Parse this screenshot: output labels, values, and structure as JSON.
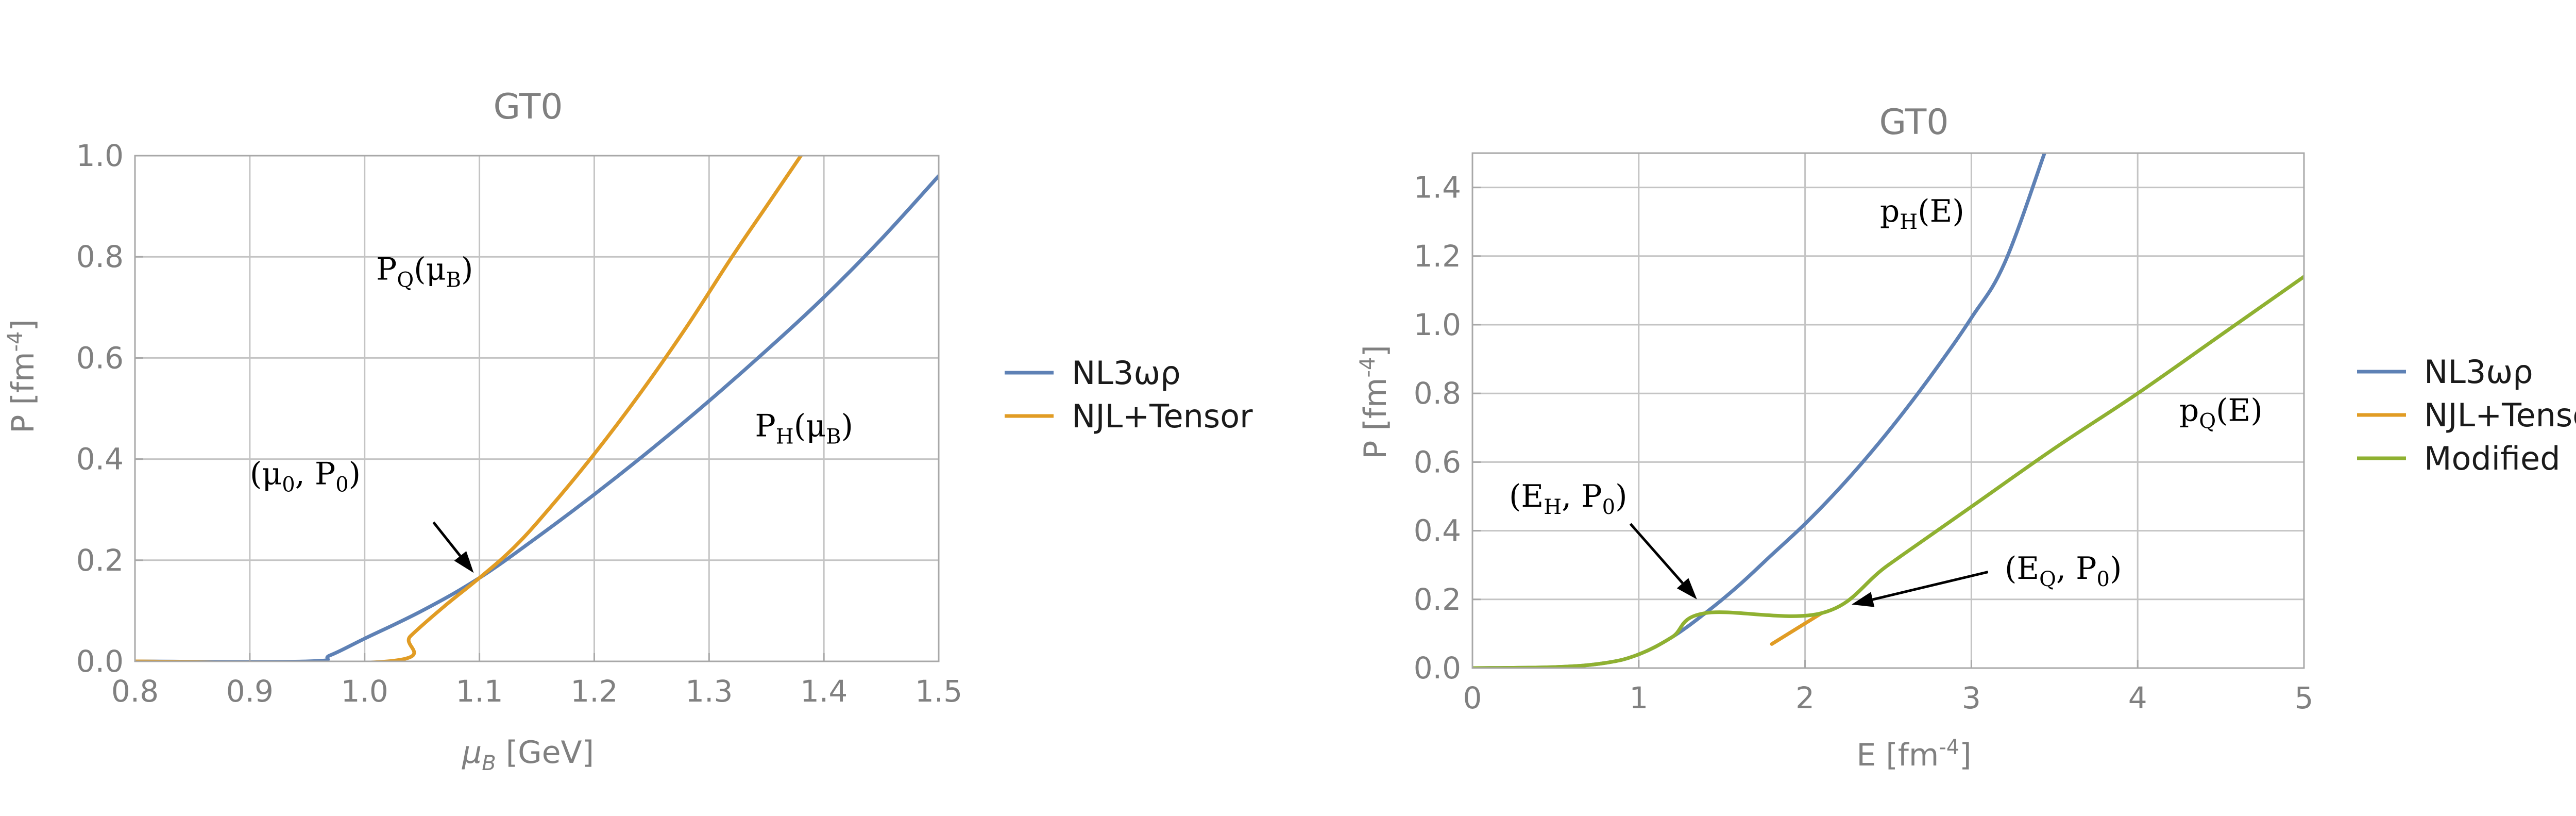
{
  "chart_data": [
    {
      "id": "left",
      "type": "line",
      "title": "GT0",
      "xlabel": "μ_B [GeV]",
      "ylabel": "P [fm^-4]",
      "xlim": [
        0.8,
        1.5
      ],
      "ylim": [
        0,
        1.0
      ],
      "xticks": [
        0.8,
        0.9,
        1.0,
        1.1,
        1.2,
        1.3,
        1.4,
        1.5
      ],
      "xtick_labels": [
        "0.8",
        "0.9",
        "1.0",
        "1.1",
        "1.2",
        "1.3",
        "1.4",
        "1.5"
      ],
      "yticks": [
        0,
        0.2,
        0.4,
        0.6,
        0.8,
        1.0
      ],
      "ytick_labels": [
        "0.0",
        "0.2",
        "0.4",
        "0.6",
        "0.8",
        "1.0"
      ],
      "grid": true,
      "legend_placement": "right",
      "series": [
        {
          "name": "NL3ωρ",
          "color": "#5E81B5",
          "x": [
            0.8,
            0.95,
            0.97,
            1.0,
            1.05,
            1.1,
            1.15,
            1.2,
            1.25,
            1.3,
            1.35,
            1.4,
            1.45,
            1.5
          ],
          "y": [
            0.0,
            0.0,
            0.012,
            0.045,
            0.1,
            0.165,
            0.245,
            0.33,
            0.42,
            0.515,
            0.615,
            0.72,
            0.835,
            0.96
          ]
        },
        {
          "name": "NJL+Tensor",
          "color": "#E19C24",
          "x": [
            0.8,
            1.02,
            1.04,
            1.07,
            1.1,
            1.13,
            1.16,
            1.2,
            1.24,
            1.28,
            1.32,
            1.35,
            1.38
          ],
          "y": [
            0.0,
            0.0,
            0.05,
            0.11,
            0.165,
            0.225,
            0.3,
            0.41,
            0.53,
            0.66,
            0.8,
            0.9,
            1.0
          ]
        }
      ],
      "annotations": [
        {
          "base": "P",
          "sub": "Q",
          "mid": "(μ",
          "midsub": "B",
          "end": ")",
          "x": 1.01,
          "y": 0.755
        },
        {
          "base": "P",
          "sub": "H",
          "mid": "(μ",
          "midsub": "B",
          "end": ")",
          "x": 1.34,
          "y": 0.445
        },
        {
          "base": "(μ",
          "sub": "0",
          "mid": ", P",
          "midsub": "0",
          "end": ")",
          "x": 0.9,
          "y": 0.35
        }
      ],
      "arrows": [
        {
          "from": [
            1.06,
            0.275
          ],
          "to": [
            1.095,
            0.175
          ]
        }
      ]
    },
    {
      "id": "right",
      "type": "line",
      "title": "GT0",
      "xlabel": "E [fm^-4]",
      "ylabel": "P [fm^-4]",
      "xlim": [
        0,
        5
      ],
      "ylim": [
        0,
        1.5
      ],
      "xticks": [
        0,
        1,
        2,
        3,
        4,
        5
      ],
      "xtick_labels": [
        "0",
        "1",
        "2",
        "3",
        "4",
        "5"
      ],
      "yticks": [
        0,
        0.2,
        0.4,
        0.6,
        0.8,
        1.0,
        1.2,
        1.4
      ],
      "ytick_labels": [
        "0.0",
        "0.2",
        "0.4",
        "0.6",
        "0.8",
        "1.0",
        "1.2",
        "1.4"
      ],
      "grid": true,
      "legend_placement": "right",
      "series": [
        {
          "name": "NL3ωρ",
          "color": "#5E81B5",
          "x": [
            0.0,
            0.5,
            0.8,
            1.0,
            1.2,
            1.4,
            1.6,
            1.8,
            2.0,
            2.2,
            2.4,
            2.6,
            2.8,
            3.0,
            3.2,
            3.44
          ],
          "y": [
            0.0,
            0.003,
            0.015,
            0.04,
            0.09,
            0.16,
            0.24,
            0.33,
            0.42,
            0.52,
            0.63,
            0.75,
            0.88,
            1.02,
            1.18,
            1.5
          ]
        },
        {
          "name": "NJL+Tensor",
          "color": "#E19C24",
          "x": [
            1.8,
            2.1
          ],
          "y": [
            0.07,
            0.16
          ]
        },
        {
          "name": "Modified",
          "color": "#8FB131",
          "x": [
            0.0,
            0.5,
            0.8,
            1.0,
            1.2,
            1.4,
            2.1,
            2.5,
            3.0,
            3.5,
            4.0,
            4.5,
            5.0
          ],
          "y": [
            0.0,
            0.003,
            0.015,
            0.04,
            0.09,
            0.16,
            0.16,
            0.3,
            0.47,
            0.64,
            0.8,
            0.97,
            1.14
          ]
        }
      ],
      "annotations": [
        {
          "base": "p",
          "sub": "H",
          "mid": "(E",
          "midsub": "",
          "end": ")",
          "x": 2.45,
          "y": 1.3
        },
        {
          "base": "p",
          "sub": "Q",
          "mid": "(E",
          "midsub": "",
          "end": ")",
          "x": 4.25,
          "y": 0.72
        },
        {
          "base": "(E",
          "sub": "H",
          "mid": ", P",
          "midsub": "0",
          "end": ")",
          "x": 0.22,
          "y": 0.47
        },
        {
          "base": "(E",
          "sub": "Q",
          "mid": ", P",
          "midsub": "0",
          "end": ")",
          "x": 3.2,
          "y": 0.26
        }
      ],
      "arrows": [
        {
          "from": [
            0.95,
            0.42
          ],
          "to": [
            1.35,
            0.2
          ]
        },
        {
          "from": [
            3.1,
            0.28
          ],
          "to": [
            2.28,
            0.185
          ]
        }
      ]
    }
  ]
}
